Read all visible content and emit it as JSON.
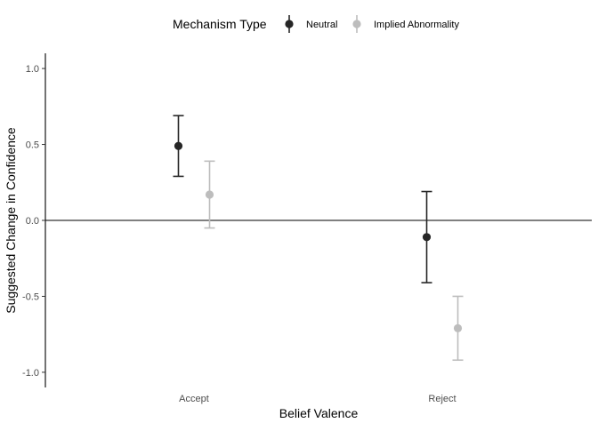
{
  "chart_data": {
    "type": "scatter",
    "subtype": "point-with-error-bars",
    "xlabel": "Belief Valence",
    "ylabel": "Suggested Change in Confidence",
    "categories": [
      "Accept",
      "Reject"
    ],
    "ylim": [
      -1.1,
      1.1
    ],
    "yticks": [
      -1.0,
      -0.5,
      0.0,
      0.5,
      1.0
    ],
    "ytick_labels": [
      "-1.0",
      "-0.5",
      "0.0",
      "0.5",
      "1.0"
    ],
    "reference_line_y": 0,
    "grid": false,
    "legend": {
      "title": "Mechanism Type",
      "position": "top"
    },
    "series": [
      {
        "name": "Neutral",
        "color": "#262626",
        "values": [
          0.49,
          -0.11
        ],
        "lower": [
          0.29,
          -0.41
        ],
        "upper": [
          0.69,
          0.19
        ]
      },
      {
        "name": "Implied Abnormality",
        "color": "#bdbdbd",
        "values": [
          0.17,
          -0.71
        ],
        "lower": [
          -0.05,
          -0.92
        ],
        "upper": [
          0.39,
          -0.5
        ]
      }
    ]
  }
}
